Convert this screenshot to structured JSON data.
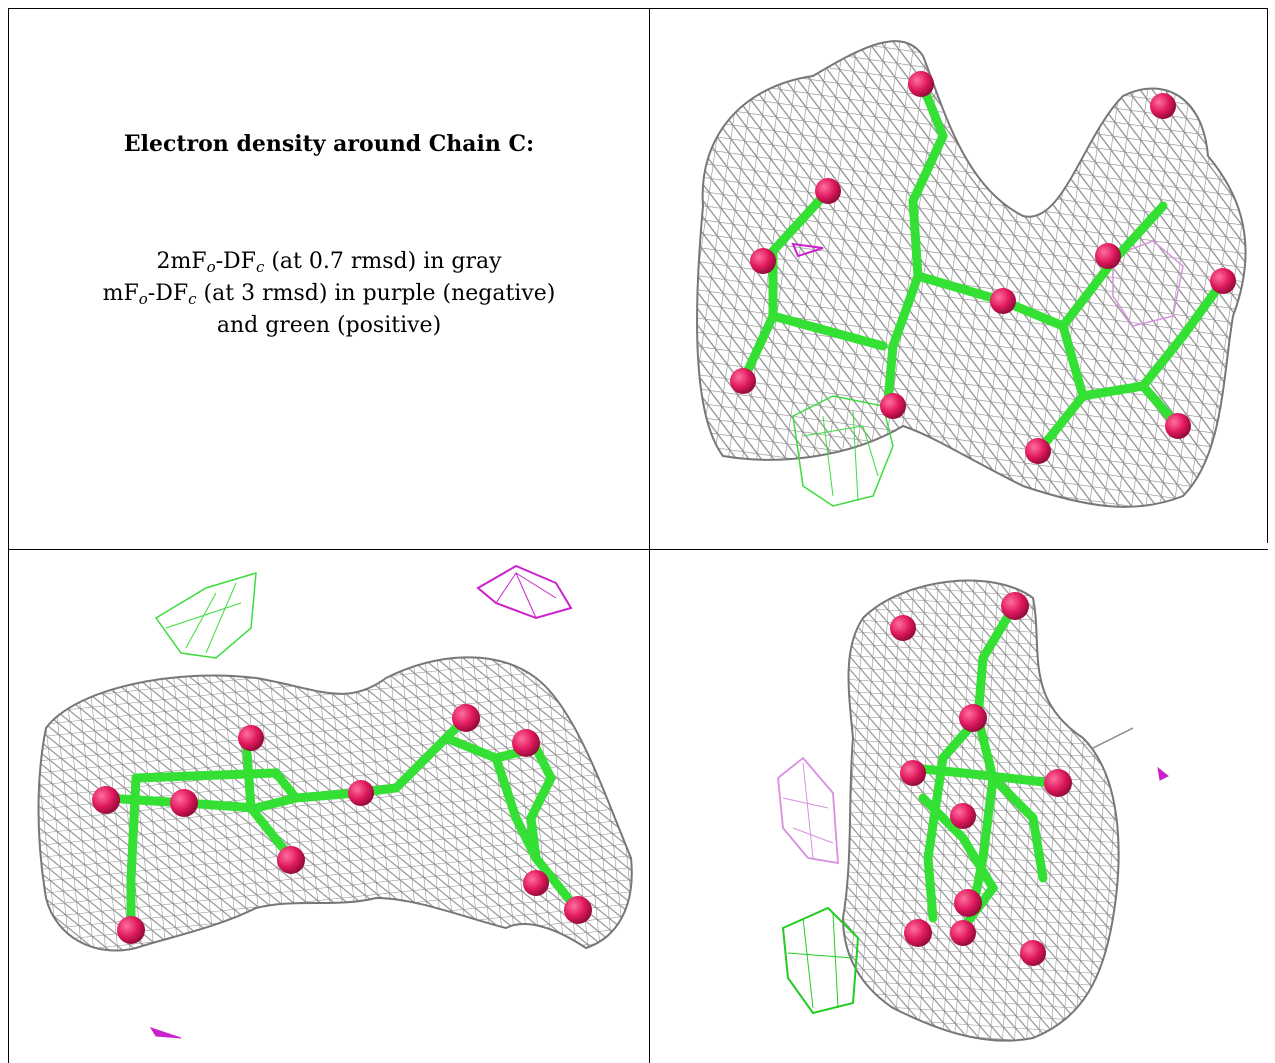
{
  "caption": {
    "title": "Electron density around Chain C:",
    "line1_a": "2mF",
    "line1_sub1": "o",
    "line1_b": "-DF",
    "line1_sub2": "c",
    "line1_c": " (at 0.7 rmsd) in gray",
    "line2_a": "mF",
    "line2_sub1": "o",
    "line2_b": "-DF",
    "line2_sub2": "c",
    "line2_c": " (at 3 rmsd) in purple (negative)",
    "line3": "and green (positive)"
  },
  "colors": {
    "mesh_gray": "#8a8a8a",
    "mesh_gray_light": "#c4c4c4",
    "bond_green": "#33e033",
    "bond_green_dark": "#1fa81f",
    "atom_red": "#e0195f",
    "density_green": "#3ddc3d",
    "density_purple": "#cc22cc",
    "density_purple_light": "#d890e0",
    "border": "#000000"
  },
  "panels": [
    {
      "view": "top",
      "icon": "density-map-view-top"
    },
    {
      "view": "side",
      "icon": "density-map-view-side"
    },
    {
      "view": "end",
      "icon": "density-map-view-end"
    }
  ]
}
